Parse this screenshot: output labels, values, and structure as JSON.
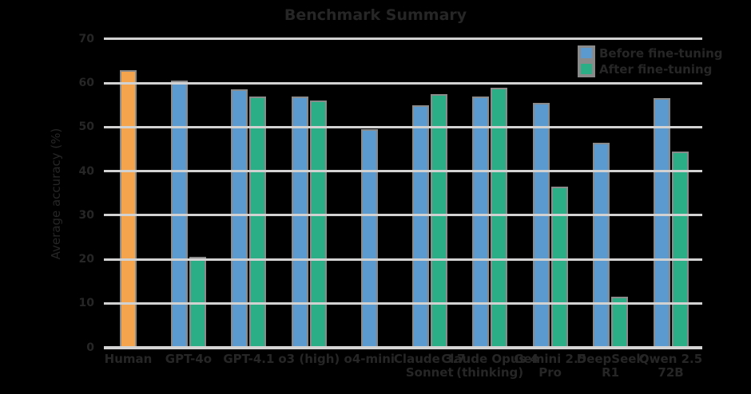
{
  "title": "Benchmark Summary",
  "colors": {
    "background": "#000000",
    "text": "#262626",
    "grid": "#d2d2d2",
    "bar_edge": "#8a8a8a",
    "human": "#f5a44e",
    "series_blue": "#5b9ace",
    "series_green": "#2bae85"
  },
  "legend": {
    "position": "upper right",
    "entries": [
      {
        "label": "Before fine-tuning",
        "color": "#5b9ace"
      },
      {
        "label": "After fine-tuning",
        "color": "#2bae85"
      }
    ]
  },
  "chart_data": {
    "type": "bar",
    "title": "Benchmark Summary",
    "xlabel": "",
    "ylabel": "Average accuracy (%)",
    "ylim": [
      0,
      70
    ],
    "yticks": [
      0,
      10,
      20,
      30,
      40,
      50,
      60,
      70
    ],
    "grid": true,
    "legend_position": "upper right",
    "categories": [
      "Human",
      "GPT-4o",
      "GPT-4.1",
      "o3 (high)",
      "o4-mini",
      "Claude 3.7\nSonnet",
      "Claude Opus 4\n(thinking)",
      "Gemini 2.5\nPro",
      "DeepSeek\nR1",
      "Qwen 2.5\n72B"
    ],
    "series": [
      {
        "name": "Human baseline",
        "color": "#f5a44e",
        "in_legend": false,
        "values": [
          63,
          null,
          null,
          null,
          null,
          null,
          null,
          null,
          null,
          null
        ]
      },
      {
        "name": "Before fine-tuning",
        "color": "#5b9ace",
        "in_legend": true,
        "values": [
          null,
          60.5,
          58.5,
          57,
          49.5,
          55,
          57,
          55.5,
          46.5,
          56.5
        ]
      },
      {
        "name": "After fine-tuning",
        "color": "#2bae85",
        "in_legend": true,
        "values": [
          null,
          20.5,
          57,
          56,
          null,
          57.5,
          59,
          36.5,
          11.5,
          44.5
        ]
      }
    ]
  }
}
